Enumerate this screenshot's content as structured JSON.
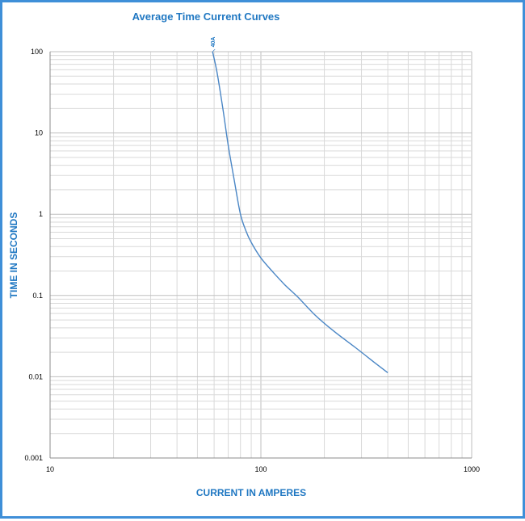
{
  "chart_data": {
    "type": "line",
    "title": "Average Time Current Curves",
    "xlabel": "CURRENT IN AMPERES",
    "ylabel": "TIME IN SECONDS",
    "xscale": "log",
    "yscale": "log",
    "xlim": [
      10,
      1000
    ],
    "ylim": [
      0.001,
      100
    ],
    "x_ticks": [
      "10",
      "100",
      "1000"
    ],
    "y_ticks": [
      "0.001",
      "0.01",
      "0.1",
      "1",
      "10",
      "100"
    ],
    "grid": true,
    "legend": "none",
    "accent_color": "#1f77c2",
    "line_color": "#4a86c5",
    "series": [
      {
        "name": "40A",
        "x": [
          59,
          62,
          66,
          70,
          75,
          80,
          85,
          90,
          100,
          115,
          130,
          150,
          180,
          220,
          280,
          340,
          400
        ],
        "y": [
          100,
          55,
          20,
          7,
          2.5,
          1.0,
          0.62,
          0.45,
          0.29,
          0.19,
          0.135,
          0.095,
          0.058,
          0.037,
          0.023,
          0.0155,
          0.0112
        ]
      }
    ]
  }
}
